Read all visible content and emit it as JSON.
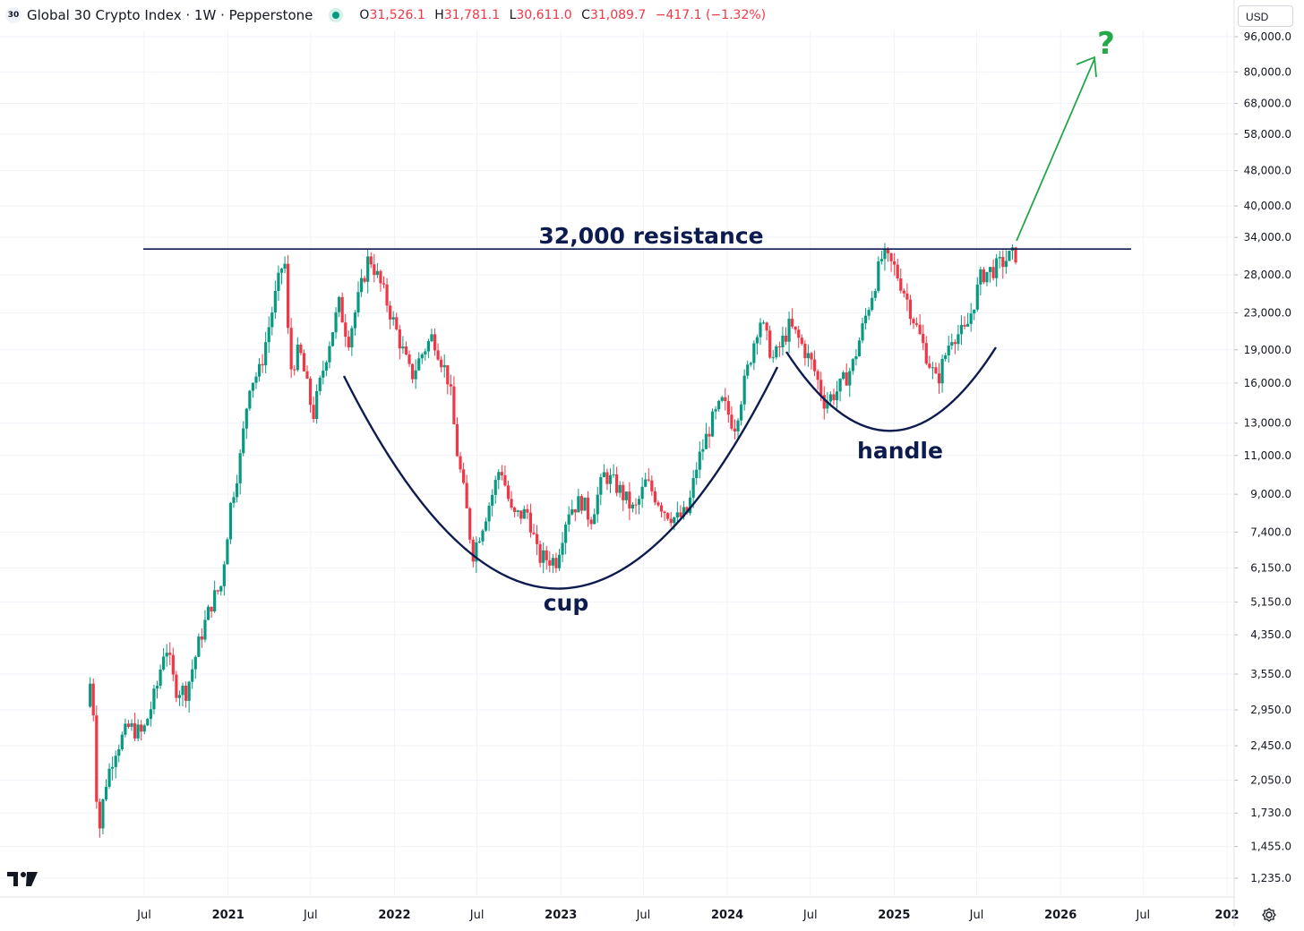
{
  "header": {
    "symbol_badge": "30",
    "title": "Global 30 Crypto Index · 1W · Pepperstone",
    "ohlc": {
      "o_label": "O",
      "o": "31,526.1",
      "h_label": "H",
      "h": "31,781.1",
      "l_label": "L",
      "l": "30,611.0",
      "c_label": "C",
      "c": "31,089.7",
      "change": "−417.1 (−1.32%)"
    }
  },
  "currency": "USD",
  "colors": {
    "up": "#089981",
    "down": "#f23645",
    "annotation": "#0d1b4f",
    "arrow": "#23a84a",
    "grid": "#f0f3fa"
  },
  "chart_data": {
    "type": "candlestick",
    "title": "Global 30 Crypto Index · 1W · Pepperstone",
    "y_scale": "log",
    "ylim": [
      1130,
      100000
    ],
    "x_ticks": [
      "Jul",
      "2021",
      "Jul",
      "2022",
      "Jul",
      "2023",
      "Jul",
      "2024",
      "Jul",
      "2025",
      "Jul",
      "2026",
      "Jul",
      "202"
    ],
    "x_tick_dates": [
      "2020-07-01",
      "2021-01-01",
      "2021-07-01",
      "2022-01-01",
      "2022-07-01",
      "2023-01-01",
      "2023-07-01",
      "2024-01-01",
      "2024-07-01",
      "2025-01-01",
      "2025-07-01",
      "2026-01-01",
      "2026-07-01",
      "2027-01-01"
    ],
    "y_ticks": [
      {
        "label": "96,000.0",
        "value": 96000
      },
      {
        "label": "80,000.0",
        "value": 80000
      },
      {
        "label": "68,000.0",
        "value": 68000
      },
      {
        "label": "58,000.0",
        "value": 58000
      },
      {
        "label": "48,000.0",
        "value": 48000
      },
      {
        "label": "40,000.0",
        "value": 40000
      },
      {
        "label": "34,000.0",
        "value": 34000
      },
      {
        "label": "28,000.0",
        "value": 28000
      },
      {
        "label": "23,000.0",
        "value": 23000
      },
      {
        "label": "19,000.0",
        "value": 19000
      },
      {
        "label": "16,000.0",
        "value": 16000
      },
      {
        "label": "13,000.0",
        "value": 13000
      },
      {
        "label": "11,000.0",
        "value": 11000
      },
      {
        "label": "9,000.0",
        "value": 9000
      },
      {
        "label": "7,400.0",
        "value": 7400
      },
      {
        "label": "6,150.0",
        "value": 6150
      },
      {
        "label": "5,150.0",
        "value": 5150
      },
      {
        "label": "4,350.0",
        "value": 4350
      },
      {
        "label": "3,550.0",
        "value": 3550
      },
      {
        "label": "2,950.0",
        "value": 2950
      },
      {
        "label": "2,450.0",
        "value": 2450
      },
      {
        "label": "2,050.0",
        "value": 2050
      },
      {
        "label": "1,730.0",
        "value": 1730
      },
      {
        "label": "1,455.0",
        "value": 1455
      },
      {
        "label": "1,235.0",
        "value": 1235
      }
    ],
    "price_path": [
      [
        "2020-03-01",
        3000
      ],
      [
        "2020-03-10",
        3500
      ],
      [
        "2020-03-18",
        2650
      ],
      [
        "2020-03-25",
        1500
      ],
      [
        "2020-04-10",
        2000
      ],
      [
        "2020-05-01",
        2400
      ],
      [
        "2020-06-01",
        2700
      ],
      [
        "2020-07-01",
        2600
      ],
      [
        "2020-08-01",
        3300
      ],
      [
        "2020-08-20",
        4200
      ],
      [
        "2020-09-10",
        3300
      ],
      [
        "2020-10-05",
        3250
      ],
      [
        "2020-11-05",
        4300
      ],
      [
        "2020-12-01",
        5200
      ],
      [
        "2020-12-20",
        5600
      ],
      [
        "2021-01-10",
        8500
      ],
      [
        "2021-02-01",
        11000
      ],
      [
        "2021-02-20",
        16000
      ],
      [
        "2021-03-15",
        17000
      ],
      [
        "2021-04-10",
        23000
      ],
      [
        "2021-05-08",
        31000
      ],
      [
        "2021-05-20",
        17000
      ],
      [
        "2021-06-10",
        19000
      ],
      [
        "2021-07-10",
        13500
      ],
      [
        "2021-08-10",
        19000
      ],
      [
        "2021-09-05",
        24000
      ],
      [
        "2021-09-25",
        20000
      ],
      [
        "2021-11-10",
        31000
      ],
      [
        "2021-12-15",
        25000
      ],
      [
        "2022-01-15",
        20000
      ],
      [
        "2022-02-10",
        16500
      ],
      [
        "2022-03-10",
        19000
      ],
      [
        "2022-03-30",
        20500
      ],
      [
        "2022-05-05",
        16000
      ],
      [
        "2022-05-20",
        11500
      ],
      [
        "2022-06-10",
        8500
      ],
      [
        "2022-06-25",
        6600
      ],
      [
        "2022-08-10",
        9200
      ],
      [
        "2022-08-25",
        10500
      ],
      [
        "2022-09-20",
        8000
      ],
      [
        "2022-10-25",
        8200
      ],
      [
        "2022-11-15",
        6500
      ],
      [
        "2022-12-25",
        6400
      ],
      [
        "2023-01-20",
        8300
      ],
      [
        "2023-02-20",
        8700
      ],
      [
        "2023-03-10",
        7900
      ],
      [
        "2023-04-10",
        10000
      ],
      [
        "2023-05-10",
        9300
      ],
      [
        "2023-06-15",
        8200
      ],
      [
        "2023-07-10",
        9600
      ],
      [
        "2023-08-20",
        8300
      ],
      [
        "2023-09-15",
        7900
      ],
      [
        "2023-10-10",
        8200
      ],
      [
        "2023-10-30",
        10500
      ],
      [
        "2023-11-30",
        13000
      ],
      [
        "2023-12-25",
        14500
      ],
      [
        "2024-01-20",
        12800
      ],
      [
        "2024-02-20",
        17500
      ],
      [
        "2024-03-15",
        22500
      ],
      [
        "2024-04-15",
        18000
      ],
      [
        "2024-05-20",
        21500
      ],
      [
        "2024-06-10",
        20000
      ],
      [
        "2024-07-10",
        17500
      ],
      [
        "2024-08-05",
        14500
      ],
      [
        "2024-09-05",
        15500
      ],
      [
        "2024-10-05",
        17500
      ],
      [
        "2024-11-10",
        24000
      ],
      [
        "2024-12-10",
        31000
      ],
      [
        "2025-01-05",
        29000
      ],
      [
        "2025-01-25",
        26000
      ],
      [
        "2025-02-25",
        21000
      ],
      [
        "2025-04-08",
        16000
      ],
      [
        "2025-05-10",
        20500
      ],
      [
        "2025-06-10",
        20800
      ],
      [
        "2025-07-15",
        28000
      ],
      [
        "2025-08-15",
        29000
      ],
      [
        "2025-09-10",
        30500
      ],
      [
        "2025-09-25",
        31089.7
      ]
    ],
    "annotations": [
      {
        "type": "hline",
        "value": 32000,
        "label": "32,000 resistance"
      },
      {
        "type": "curve",
        "label": "cup"
      },
      {
        "type": "curve",
        "label": "handle"
      },
      {
        "type": "arrow",
        "label": "?"
      }
    ]
  }
}
